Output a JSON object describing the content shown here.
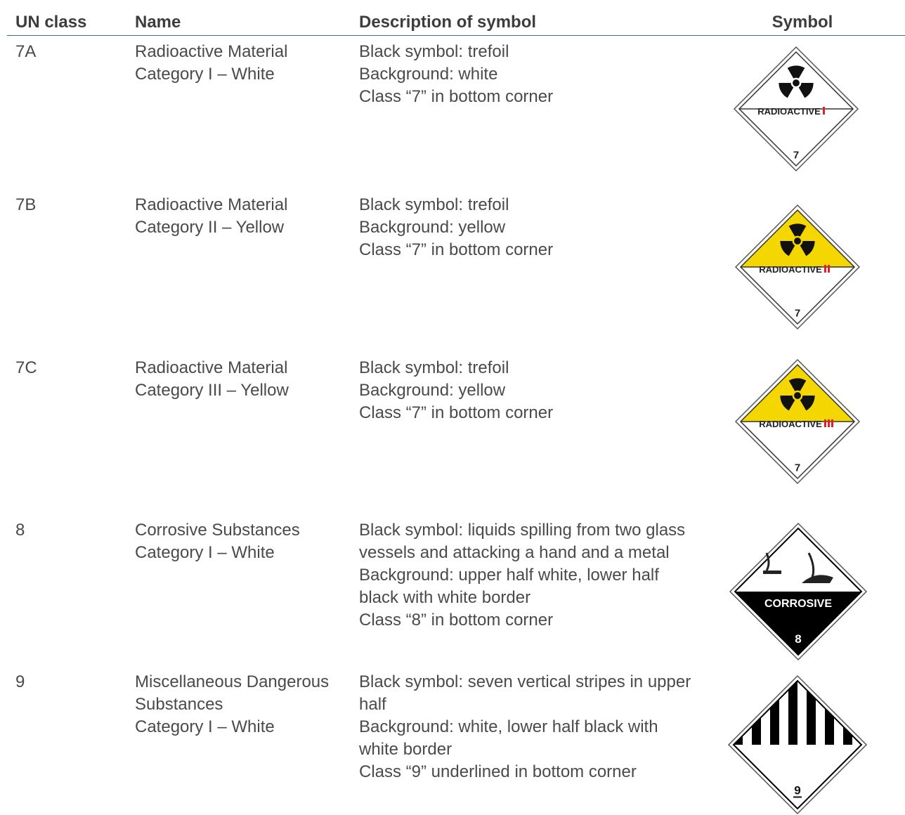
{
  "table": {
    "headers": [
      "UN class",
      "Name",
      "Description of symbol",
      "Symbol"
    ],
    "rows": [
      {
        "un": "7A",
        "name": [
          "Radioactive Material",
          "Category I – White"
        ],
        "description": [
          "Black symbol: trefoil",
          "Background: white",
          "Class “7” in bottom corner"
        ],
        "symbol": {
          "label": "RADIOACTIVE",
          "number": "7"
        }
      },
      {
        "un": "7B",
        "name": [
          "Radioactive Material",
          "Category II – Yellow"
        ],
        "description": [
          "Black symbol: trefoil",
          "Background: yellow",
          "Class “7” in bottom corner"
        ],
        "symbol": {
          "label": "RADIOACTIVE",
          "number": "7"
        }
      },
      {
        "un": "7C",
        "name": [
          "Radioactive Material",
          "Category III – Yellow"
        ],
        "description": [
          "Black symbol: trefoil",
          "Background: yellow",
          "Class “7” in bottom corner"
        ],
        "symbol": {
          "label": "RADIOACTIVE",
          "number": "7"
        }
      },
      {
        "un": "8",
        "name": [
          "Corrosive Substances",
          "Category I – White"
        ],
        "description": [
          "Black symbol: liquids spilling from two glass",
          "vessels and attacking a hand and a metal",
          "Background: upper half white, lower half",
          "black with white border",
          "Class “8” in bottom corner"
        ],
        "symbol": {
          "label": "CORROSIVE",
          "number": "8"
        }
      },
      {
        "un": "9",
        "name": [
          "Miscellaneous Dangerous",
          "Substances",
          "Category I – White"
        ],
        "description": [
          "Black symbol: seven vertical stripes in upper",
          "half",
          "Background: white, lower half black with",
          "white border",
          "Class “9” underlined in bottom corner"
        ],
        "symbol": {
          "number": "9"
        }
      }
    ]
  }
}
